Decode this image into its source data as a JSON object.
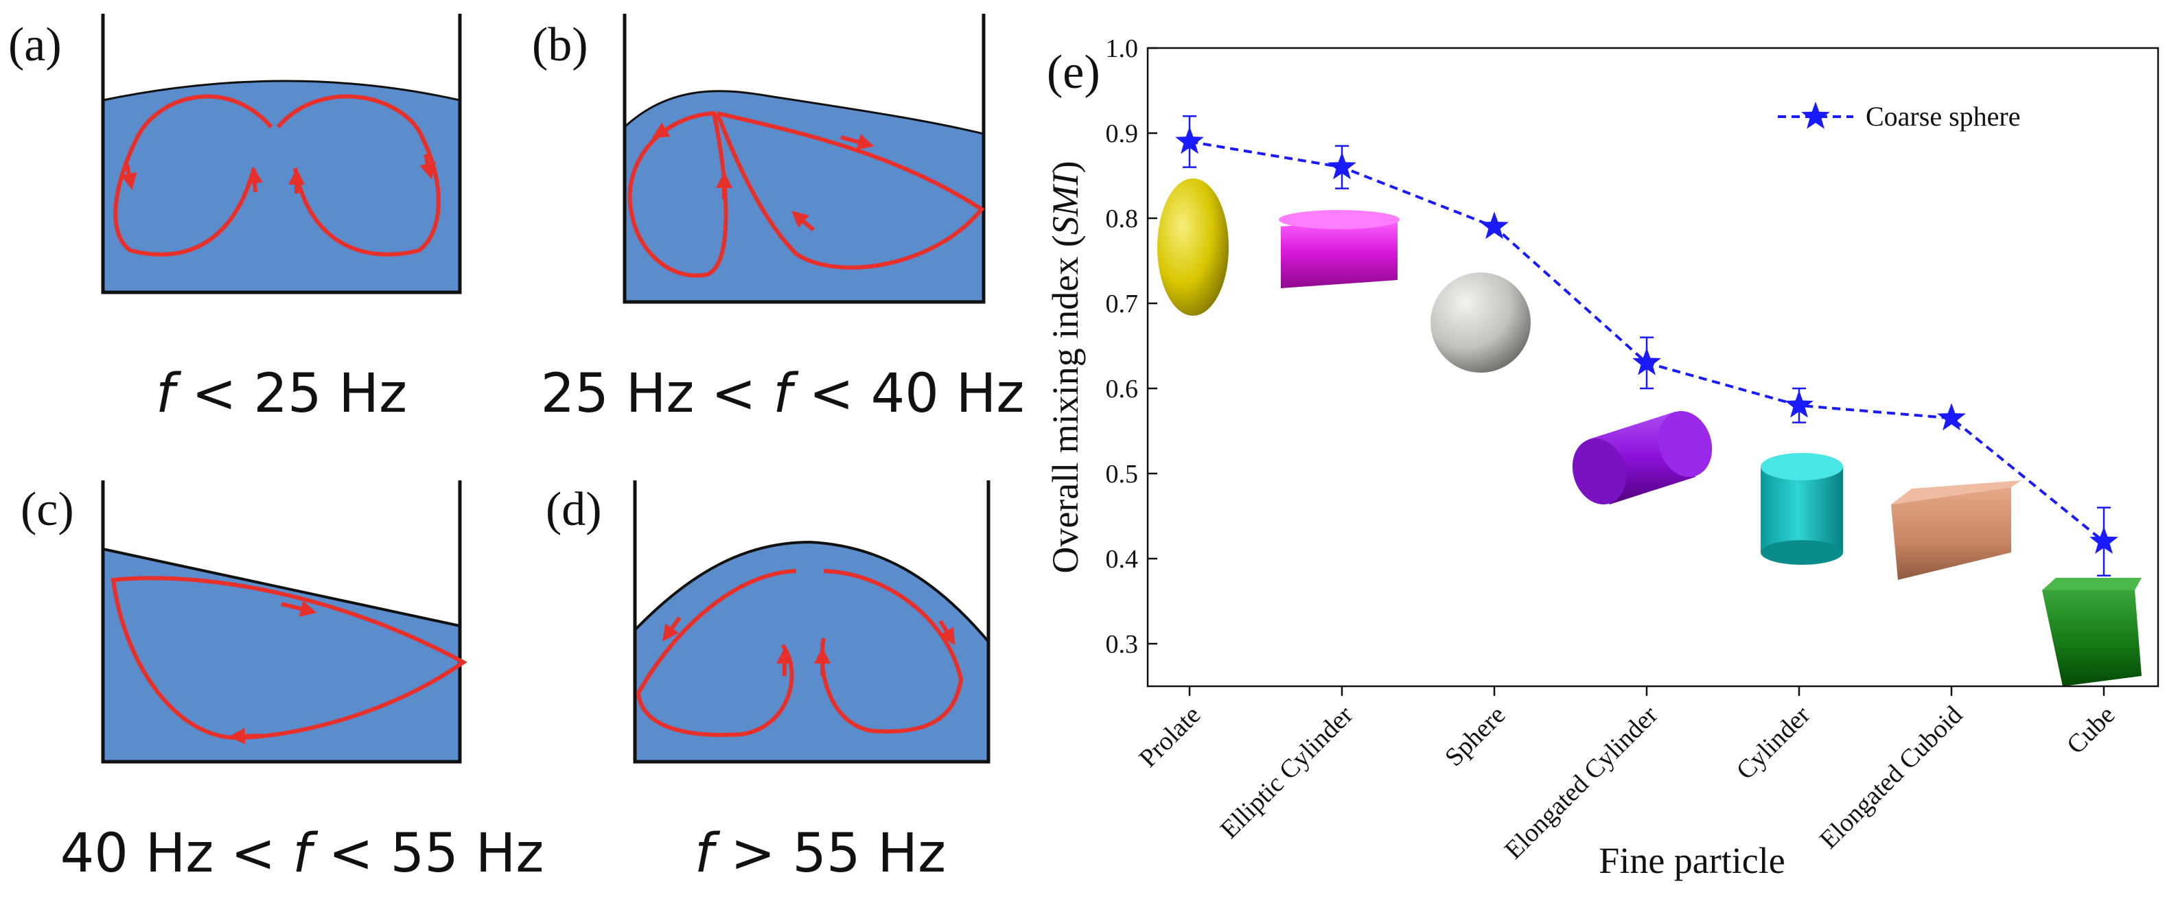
{
  "panels": [
    {
      "label": "(a)",
      "condition": "f < 25 Hz",
      "cond_prefix": "",
      "cond_var": "f",
      "cond_suffix": " < 25 Hz"
    },
    {
      "label": "(b)",
      "condition": "25 Hz < f < 40 Hz",
      "cond_prefix": "25 Hz < ",
      "cond_var": "f",
      "cond_suffix": " < 40 Hz"
    },
    {
      "label": "(c)",
      "condition": "40 Hz < f < 55 Hz",
      "cond_prefix": "40 Hz < ",
      "cond_var": "f",
      "cond_suffix": " < 55 Hz"
    },
    {
      "label": "(d)",
      "condition": "f > 55 Hz",
      "cond_prefix": "",
      "cond_var": "f",
      "cond_suffix": " > 55 Hz"
    }
  ],
  "colors": {
    "liquid": "#5b8ccc",
    "flow": "#e8302a",
    "series": "#1a1aff"
  },
  "chart_data": {
    "type": "line",
    "panel_label": "(e)",
    "title": "",
    "xlabel": "Fine particle",
    "ylabel_prefix": "Overall mixing index (",
    "ylabel_italic": "SMI",
    "ylabel_suffix": ")",
    "ylim": [
      0.25,
      1.0
    ],
    "yticks": [
      0.3,
      0.4,
      0.5,
      0.6,
      0.7,
      0.8,
      0.9,
      1.0
    ],
    "ytick_labels": [
      "0.3",
      "0.4",
      "0.5",
      "0.6",
      "0.7",
      "0.8",
      "0.9",
      "1.0"
    ],
    "categories": [
      "Prolate",
      "Elliptic Cylinder",
      "Sphere",
      "Elongated Cylinder",
      "Cylinder",
      "Elongated Cuboid",
      "Cube"
    ],
    "series": [
      {
        "name": "Coarse sphere",
        "marker": "star",
        "line_style": "dashed",
        "values": [
          0.89,
          0.86,
          0.79,
          0.63,
          0.58,
          0.565,
          0.42
        ],
        "error": [
          0.03,
          0.025,
          0.0,
          0.03,
          0.02,
          0.0,
          0.04
        ]
      }
    ],
    "legend_position": "top-right",
    "grid": false
  }
}
